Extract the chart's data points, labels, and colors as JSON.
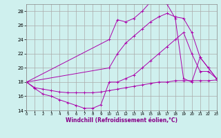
{
  "title": "",
  "xlabel": "Windchill (Refroidissement éolien,°C)",
  "ylabel": "",
  "bg_color": "#cff0ee",
  "grid_color": "#aaaaaa",
  "line_color": "#aa00aa",
  "xlim": [
    0,
    23
  ],
  "ylim": [
    14,
    29
  ],
  "xticks": [
    0,
    1,
    2,
    3,
    4,
    5,
    6,
    7,
    8,
    9,
    10,
    11,
    12,
    13,
    14,
    15,
    16,
    17,
    18,
    19,
    20,
    21,
    22,
    23
  ],
  "yticks": [
    14,
    16,
    18,
    20,
    22,
    24,
    26,
    28
  ],
  "series": [
    {
      "x": [
        0,
        1,
        2,
        3,
        4,
        5,
        6,
        7,
        8,
        9,
        10,
        11,
        12,
        13,
        14,
        15,
        16,
        17,
        18,
        19,
        20,
        21,
        22,
        23
      ],
      "y": [
        18,
        17.1,
        16.3,
        16.0,
        15.5,
        15.1,
        14.7,
        14.3,
        14.3,
        14.8,
        18,
        18,
        18.5,
        19,
        20,
        21,
        22,
        23,
        24,
        25,
        22,
        19.5,
        19.5,
        18.5
      ]
    },
    {
      "x": [
        0,
        1,
        2,
        3,
        4,
        5,
        6,
        7,
        8,
        9,
        10,
        11,
        12,
        13,
        14,
        15,
        16,
        17,
        18,
        19,
        20,
        21,
        22,
        23
      ],
      "y": [
        18,
        17.2,
        17.0,
        16.8,
        16.6,
        16.5,
        16.5,
        16.5,
        16.5,
        16.6,
        16.8,
        17.0,
        17.2,
        17.4,
        17.6,
        17.8,
        18.0,
        18.0,
        18.2,
        18.2,
        18.2,
        18.2,
        18.2,
        18.3
      ]
    },
    {
      "x": [
        0,
        10,
        11,
        12,
        13,
        14,
        15,
        16,
        17,
        18,
        19,
        20,
        21,
        22,
        23
      ],
      "y": [
        18,
        24,
        26.8,
        26.5,
        27.0,
        28.0,
        29.3,
        29.5,
        29.0,
        27.0,
        18.5,
        18.0,
        21.5,
        20.0,
        18.5
      ]
    },
    {
      "x": [
        0,
        10,
        11,
        12,
        13,
        14,
        15,
        16,
        17,
        18,
        19,
        20,
        21,
        22,
        23
      ],
      "y": [
        18,
        20,
        22,
        23.5,
        24.5,
        25.5,
        26.5,
        27.2,
        27.7,
        27.2,
        27.0,
        25.0,
        21.5,
        20.0,
        18.5
      ]
    }
  ]
}
